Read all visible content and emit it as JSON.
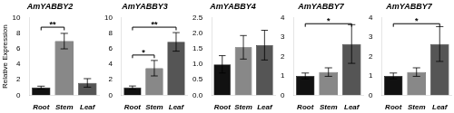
{
  "chart_data": [
    {
      "type": "bar",
      "title": "AmYABBY2",
      "ylabel": "Relative Expression",
      "categories": [
        "Root",
        "Stem",
        "Leaf"
      ],
      "values": [
        1.0,
        7.0,
        1.6
      ],
      "errors": [
        0.18,
        1.0,
        0.55
      ],
      "colors": [
        "#111111",
        "#888888",
        "#555555"
      ],
      "ylim": [
        0,
        10
      ],
      "yticks": [
        0,
        2,
        4,
        6,
        8,
        10
      ],
      "grid": false,
      "annotations": [
        {
          "text": "**",
          "x": [
            "Root",
            "Stem"
          ],
          "y": 8.8
        }
      ]
    },
    {
      "type": "bar",
      "title": "AmYABBY3",
      "categories": [
        "Root",
        "Stem",
        "Leaf"
      ],
      "values": [
        1.0,
        3.5,
        6.9
      ],
      "errors": [
        0.2,
        1.0,
        1.2
      ],
      "colors": [
        "#111111",
        "#888888",
        "#555555"
      ],
      "ylim": [
        0,
        10
      ],
      "yticks": [
        0,
        2,
        4,
        6,
        8,
        10
      ],
      "grid": false,
      "annotations": [
        {
          "text": "*",
          "x": [
            "Root",
            "Stem"
          ],
          "y": 5.2
        },
        {
          "text": "**",
          "x": [
            "Root",
            "Leaf"
          ],
          "y": 8.8
        }
      ]
    },
    {
      "type": "bar",
      "title": "AmYABBY4",
      "categories": [
        "Root",
        "Stem",
        "Leaf"
      ],
      "values": [
        1.0,
        1.55,
        1.62
      ],
      "errors": [
        0.28,
        0.38,
        0.48
      ],
      "colors": [
        "#111111",
        "#888888",
        "#555555"
      ],
      "ylim": [
        0,
        2.5
      ],
      "yticks": [
        {
          "value": 0,
          "label": "0.0"
        },
        {
          "value": 0.5,
          "label": "0.5"
        },
        {
          "value": 1,
          "label": "1.0"
        },
        {
          "value": 1.5,
          "label": "1.5"
        },
        {
          "value": 2,
          "label": "2.0"
        },
        {
          "value": 2.5,
          "label": "2.5"
        }
      ],
      "grid": false,
      "annotations": []
    },
    {
      "type": "bar",
      "title": "AmYABBY7",
      "categories": [
        "Root",
        "Stem",
        "Leaf"
      ],
      "values": [
        1.0,
        1.2,
        2.65
      ],
      "errors": [
        0.15,
        0.22,
        1.0
      ],
      "colors": [
        "#111111",
        "#888888",
        "#555555"
      ],
      "ylim": [
        0,
        4
      ],
      "yticks": [
        0,
        1,
        2,
        3,
        4
      ],
      "grid": false,
      "annotations": [
        {
          "text": "*",
          "x": [
            "Root",
            "Leaf"
          ],
          "y": 3.7
        }
      ]
    },
    {
      "type": "bar",
      "title": "AmYABBY7",
      "categories": [
        "Root",
        "Stem",
        "Leaf"
      ],
      "values": [
        1.0,
        1.2,
        2.65
      ],
      "errors": [
        0.15,
        0.22,
        0.9
      ],
      "colors": [
        "#111111",
        "#888888",
        "#555555"
      ],
      "ylim": [
        0,
        4
      ],
      "yticks": [
        0,
        1,
        2,
        3,
        4
      ],
      "grid": false,
      "annotations": [
        {
          "text": "*",
          "x": [
            "Root",
            "Leaf"
          ],
          "y": 3.7
        }
      ]
    }
  ]
}
